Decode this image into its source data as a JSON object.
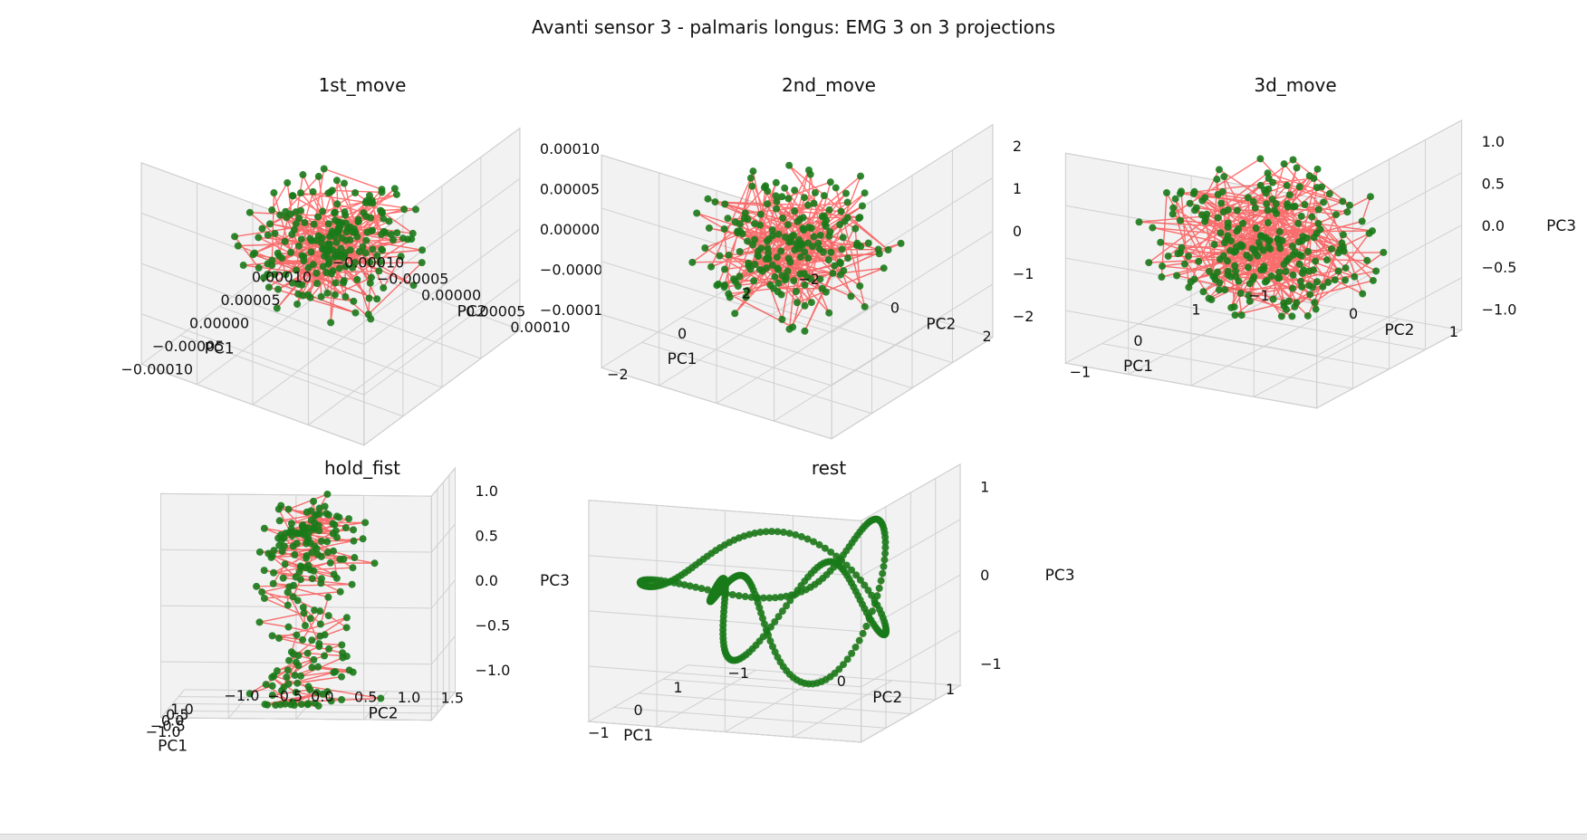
{
  "figure_title": "Avanti sensor 3 - palmaris longus: EMG 3 on 3 projections",
  "colors": {
    "points": "#1a7a1a",
    "lines": "#ff0000",
    "pane": "#f2f2f2",
    "grid": "#d0d0d0"
  },
  "chart_data": [
    {
      "type": "scatter3d",
      "title": "1st_move",
      "xlabel": "PC1",
      "ylabel": "PC2",
      "zlabel": "PC3",
      "xticks": [
        "−0.00010",
        "−0.00005",
        "0.00000",
        "0.00005",
        "0.00010"
      ],
      "yticks": [
        "−0.00010",
        "−0.00005",
        "0.00000",
        "0.00005",
        "0.00010"
      ],
      "zticks": [
        "−0.00010",
        "−0.00005",
        "0.00000",
        "0.00005",
        "0.00010"
      ],
      "xlim": [
        -0.00012,
        0.00012
      ],
      "ylim": [
        -0.00012,
        0.00012
      ],
      "zlim": [
        -0.00012,
        0.00012
      ],
      "shape": "cloud",
      "n_points": 220,
      "spread": 0.72,
      "grid": true
    },
    {
      "type": "scatter3d",
      "title": "2nd_move",
      "xlabel": "PC1",
      "ylabel": "PC2",
      "zlabel": "PC3",
      "xticks": [
        "−2",
        "0",
        "2"
      ],
      "yticks": [
        "−2",
        "0",
        "2"
      ],
      "zticks": [
        "−2",
        "−1",
        "0",
        "1",
        "2"
      ],
      "xlim": [
        -3,
        3
      ],
      "ylim": [
        -3,
        3
      ],
      "zlim": [
        -2.5,
        2.5
      ],
      "shape": "cloud",
      "n_points": 200,
      "spread": 0.8,
      "grid": true
    },
    {
      "type": "scatter3d",
      "title": "3d_move",
      "xlabel": "PC1",
      "ylabel": "PC2",
      "zlabel": "PC3",
      "xticks": [
        "−1",
        "0",
        "1"
      ],
      "yticks": [
        "−1",
        "0",
        "1"
      ],
      "zticks": [
        "−1.0",
        "−0.5",
        "0.0",
        "0.5",
        "1.0"
      ],
      "xlim": [
        -1.6,
        1.6
      ],
      "ylim": [
        -1.6,
        1.6
      ],
      "zlim": [
        -1.2,
        1.2
      ],
      "shape": "cloud",
      "n_points": 240,
      "spread": 0.9,
      "grid": true
    },
    {
      "type": "scatter3d",
      "title": "hold_fist",
      "xlabel": "PC1",
      "ylabel": "PC2",
      "zlabel": "PC3",
      "xticks": [
        "−1.0",
        "−0.5",
        "0.0",
        "0.5",
        "1.0"
      ],
      "yticks": [
        "−1.0",
        "−0.5",
        "0.0",
        "0.5",
        "1.0",
        "1.5"
      ],
      "zticks": [
        "−1.0",
        "−0.5",
        "0.0",
        "0.5",
        "1.0"
      ],
      "xlim": [
        -1.4,
        1.4
      ],
      "ylim": [
        -1.2,
        1.7
      ],
      "zlim": [
        -1.2,
        1.2
      ],
      "shape": "heart",
      "n_points": 200,
      "spread": 0.85,
      "grid": true
    },
    {
      "type": "scatter3d",
      "title": "rest",
      "xlabel": "PC1",
      "ylabel": "PC2",
      "zlabel": "PC3",
      "xticks": [
        "−1",
        "0",
        "1"
      ],
      "yticks": [
        "−1",
        "0",
        "1"
      ],
      "zticks": [
        "−1",
        "0",
        "1"
      ],
      "xlim": [
        -1.8,
        1.8
      ],
      "ylim": [
        -1.8,
        1.8
      ],
      "zlim": [
        -1.8,
        1.8
      ],
      "shape": "loops",
      "n_points": 320,
      "spread": 0.9,
      "grid": true
    }
  ]
}
